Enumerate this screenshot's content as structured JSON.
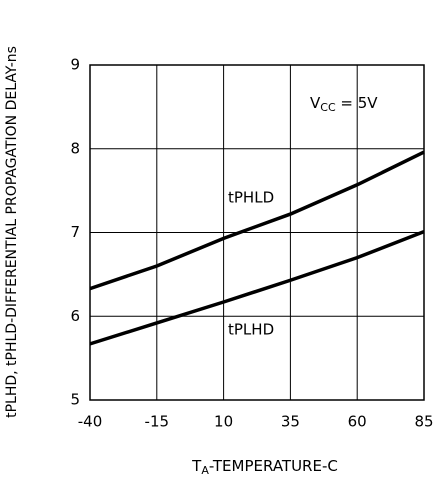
{
  "chart_data": {
    "type": "line",
    "ylabel": "tPLHD, tPHLD-DIFFERENTIAL PROPAGATION DELAY-ns",
    "xlabel_parts": [
      "T",
      "A",
      "-TEMPERATURE-C"
    ],
    "annotation_parts": [
      "V",
      "CC",
      " = 5V"
    ],
    "x": [
      -40,
      -15,
      10,
      35,
      60,
      85
    ],
    "series": [
      {
        "name": "tPHLD",
        "color": "#000000",
        "values": [
          6.33,
          6.6,
          6.93,
          7.22,
          7.57,
          7.96
        ]
      },
      {
        "name": "tPLHD",
        "color": "#000000",
        "values": [
          5.67,
          5.92,
          6.17,
          6.43,
          6.7,
          7.01
        ]
      }
    ],
    "xlim": [
      -40,
      85
    ],
    "xticks": [
      -40,
      -15,
      10,
      35,
      60,
      85
    ],
    "ylim": [
      5,
      9
    ],
    "yticks": [
      5,
      6,
      7,
      8,
      9
    ],
    "grid": true
  }
}
